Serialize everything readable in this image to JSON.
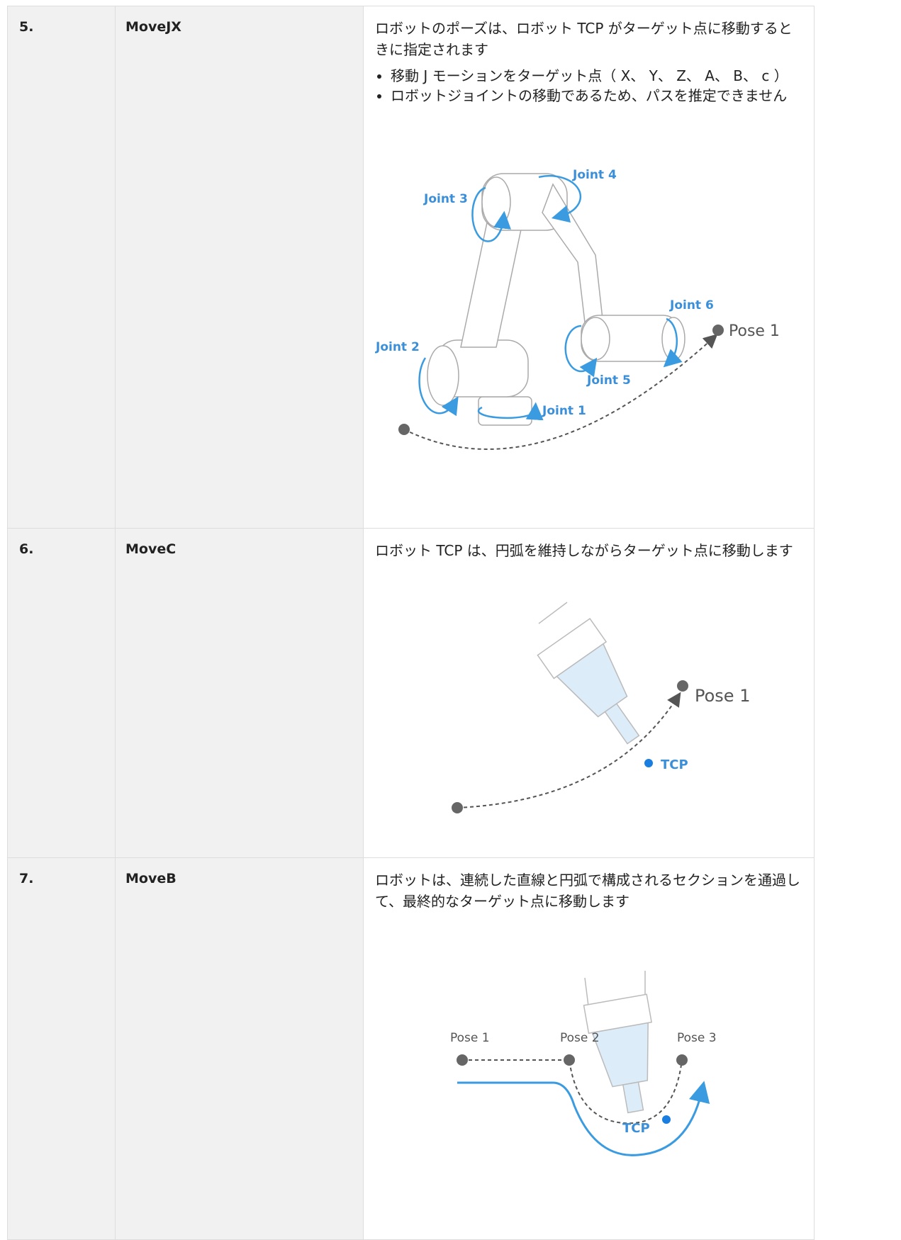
{
  "table": {
    "rows": [
      {
        "number": "5.",
        "name": "MoveJX",
        "description": "ロボットのポーズは、ロボット TCP がターゲット点に移動するときに指定されます",
        "bullets": [
          "移動 J モーションをターゲット点（ X、 Y、 Z、 A、 B、 c ）",
          "ロボットジョイントの移動であるため、パスを推定できません"
        ],
        "figure": {
          "labels": [
            "Joint 3",
            "Joint 4",
            "Joint 2",
            "Joint 6",
            "Pose 1",
            "Joint 5",
            "Joint 1"
          ]
        }
      },
      {
        "number": "6.",
        "name": "MoveC",
        "description": "ロボット TCP は、円弧を維持しながらターゲット点に移動します",
        "figure": {
          "labels": [
            "Pose 1",
            "TCP"
          ]
        }
      },
      {
        "number": "7.",
        "name": "MoveB",
        "description": "ロボットは、連続した直線と円弧で構成されるセクションを通過して、最終的なターゲット点に移動します",
        "figure": {
          "labels": [
            "Pose 1",
            "Pose 2",
            "Pose 3",
            "TCP"
          ]
        }
      }
    ]
  }
}
